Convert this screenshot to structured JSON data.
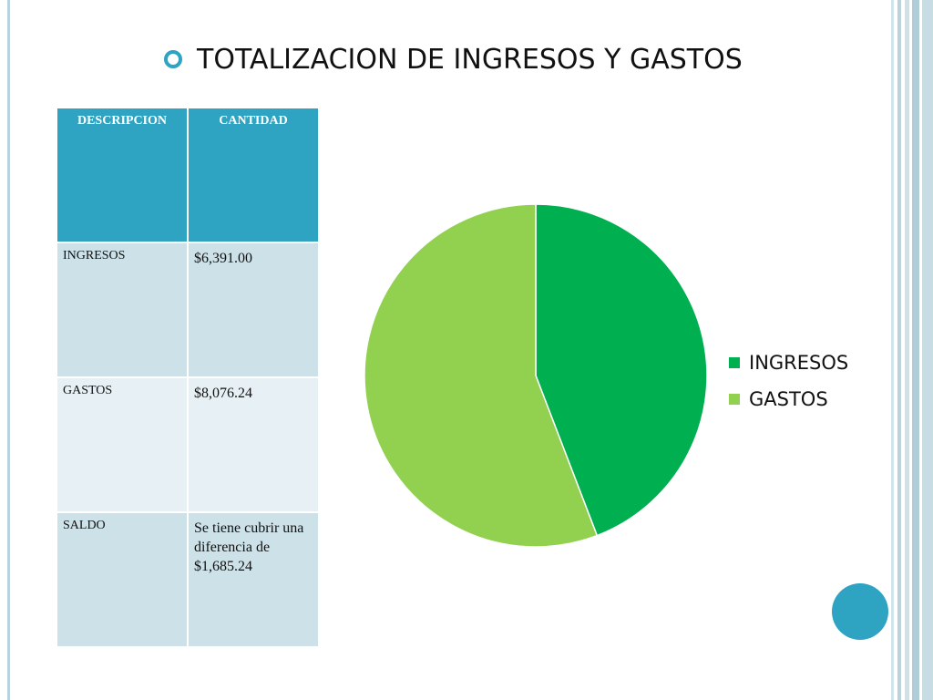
{
  "slide": {
    "title": "TOTALIZACION DE INGRESOS Y GASTOS"
  },
  "table": {
    "headers": [
      "DESCRIPCION",
      "CANTIDAD"
    ],
    "rows": [
      {
        "desc": "INGRESOS",
        "amount": "$6,391.00"
      },
      {
        "desc": "GASTOS",
        "amount": "$8,076.24"
      },
      {
        "desc": "SALDO",
        "amount": "Se tiene cubrir una diferencia de $1,685.24"
      }
    ]
  },
  "chart_data": {
    "type": "pie",
    "categories": [
      "INGRESOS",
      "GASTOS"
    ],
    "values": [
      6391.0,
      8076.24
    ],
    "colors": [
      "#00b050",
      "#92d050"
    ],
    "legend": "right",
    "start_angle_deg": 0
  }
}
